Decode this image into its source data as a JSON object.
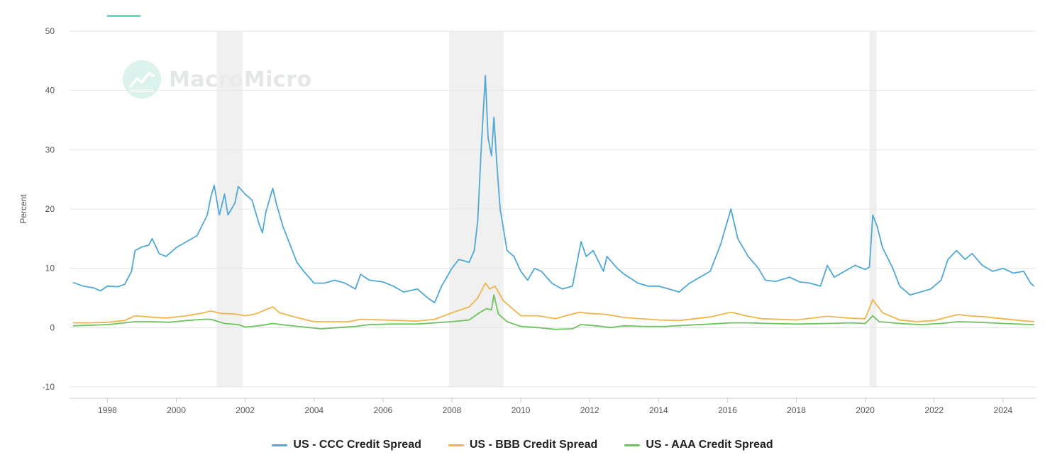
{
  "accent_color": "#6fd6c2",
  "watermark": {
    "text": "MacroMicro",
    "icon": "trend-chart-icon"
  },
  "chart_data": {
    "type": "line",
    "ylabel": "Percent",
    "ylim": [
      -10,
      50
    ],
    "y_ticks": [
      "50",
      "40",
      "30",
      "20",
      "10",
      "0",
      "-10"
    ],
    "xlim": [
      1996.9,
      2024.95
    ],
    "x_ticks": [
      "1998",
      "2000",
      "2002",
      "2004",
      "2006",
      "2008",
      "2010",
      "2012",
      "2014",
      "2016",
      "2018",
      "2020",
      "2022",
      "2024"
    ],
    "grid": "horizontal",
    "legend_position": "bottom-center",
    "recession_shading": [
      [
        2001.17,
        2001.92
      ],
      [
        2007.92,
        2009.5
      ],
      [
        2020.12,
        2020.33
      ]
    ],
    "series": [
      {
        "name": "US - CCC Credit Spread",
        "color": "#4fa8d6",
        "points": [
          [
            1997.0,
            7.6
          ],
          [
            1997.3,
            7.0
          ],
          [
            1997.6,
            6.7
          ],
          [
            1997.8,
            6.2
          ],
          [
            1998.0,
            7.0
          ],
          [
            1998.3,
            6.9
          ],
          [
            1998.5,
            7.3
          ],
          [
            1998.7,
            9.5
          ],
          [
            1998.8,
            13.0
          ],
          [
            1999.0,
            13.6
          ],
          [
            1999.2,
            13.9
          ],
          [
            1999.3,
            15.0
          ],
          [
            1999.5,
            12.5
          ],
          [
            1999.7,
            12.0
          ],
          [
            2000.0,
            13.5
          ],
          [
            2000.3,
            14.5
          ],
          [
            2000.6,
            15.5
          ],
          [
            2000.9,
            19.0
          ],
          [
            2001.0,
            22.0
          ],
          [
            2001.1,
            24.0
          ],
          [
            2001.25,
            19.0
          ],
          [
            2001.4,
            22.5
          ],
          [
            2001.5,
            19.0
          ],
          [
            2001.7,
            21.0
          ],
          [
            2001.8,
            23.8
          ],
          [
            2002.0,
            22.5
          ],
          [
            2002.2,
            21.5
          ],
          [
            2002.4,
            17.5
          ],
          [
            2002.5,
            16.0
          ],
          [
            2002.6,
            19.5
          ],
          [
            2002.8,
            23.5
          ],
          [
            2002.9,
            21.0
          ],
          [
            2003.1,
            17.0
          ],
          [
            2003.3,
            14.0
          ],
          [
            2003.5,
            11.0
          ],
          [
            2003.7,
            9.5
          ],
          [
            2004.0,
            7.5
          ],
          [
            2004.3,
            7.5
          ],
          [
            2004.6,
            8.0
          ],
          [
            2004.9,
            7.5
          ],
          [
            2005.2,
            6.5
          ],
          [
            2005.35,
            9.0
          ],
          [
            2005.6,
            8.0
          ],
          [
            2006.0,
            7.7
          ],
          [
            2006.3,
            7.0
          ],
          [
            2006.6,
            6.0
          ],
          [
            2007.0,
            6.5
          ],
          [
            2007.3,
            5.0
          ],
          [
            2007.5,
            4.2
          ],
          [
            2007.7,
            7.0
          ],
          [
            2008.0,
            10.0
          ],
          [
            2008.2,
            11.5
          ],
          [
            2008.5,
            11.0
          ],
          [
            2008.65,
            13.0
          ],
          [
            2008.75,
            18.0
          ],
          [
            2008.85,
            30.0
          ],
          [
            2008.97,
            42.5
          ],
          [
            2009.05,
            32.0
          ],
          [
            2009.15,
            29.0
          ],
          [
            2009.22,
            35.5
          ],
          [
            2009.3,
            28.0
          ],
          [
            2009.4,
            20.0
          ],
          [
            2009.6,
            13.0
          ],
          [
            2009.8,
            12.0
          ],
          [
            2010.0,
            9.5
          ],
          [
            2010.2,
            8.0
          ],
          [
            2010.4,
            10.0
          ],
          [
            2010.6,
            9.5
          ],
          [
            2010.9,
            7.5
          ],
          [
            2011.2,
            6.5
          ],
          [
            2011.5,
            7.0
          ],
          [
            2011.75,
            14.5
          ],
          [
            2011.9,
            12.0
          ],
          [
            2012.1,
            13.0
          ],
          [
            2012.4,
            9.5
          ],
          [
            2012.5,
            12.0
          ],
          [
            2012.8,
            10.0
          ],
          [
            2013.0,
            9.0
          ],
          [
            2013.4,
            7.5
          ],
          [
            2013.7,
            7.0
          ],
          [
            2014.0,
            7.0
          ],
          [
            2014.3,
            6.5
          ],
          [
            2014.6,
            6.0
          ],
          [
            2014.9,
            7.5
          ],
          [
            2015.2,
            8.5
          ],
          [
            2015.5,
            9.5
          ],
          [
            2015.8,
            14.0
          ],
          [
            2016.1,
            20.0
          ],
          [
            2016.3,
            15.0
          ],
          [
            2016.6,
            12.0
          ],
          [
            2016.9,
            10.0
          ],
          [
            2017.1,
            8.0
          ],
          [
            2017.4,
            7.8
          ],
          [
            2017.8,
            8.5
          ],
          [
            2018.1,
            7.7
          ],
          [
            2018.4,
            7.5
          ],
          [
            2018.7,
            7.0
          ],
          [
            2018.9,
            10.5
          ],
          [
            2019.1,
            8.5
          ],
          [
            2019.4,
            9.5
          ],
          [
            2019.7,
            10.5
          ],
          [
            2020.0,
            9.8
          ],
          [
            2020.12,
            10.2
          ],
          [
            2020.22,
            19.0
          ],
          [
            2020.35,
            17.0
          ],
          [
            2020.5,
            13.5
          ],
          [
            2020.8,
            10.0
          ],
          [
            2021.0,
            7.0
          ],
          [
            2021.3,
            5.5
          ],
          [
            2021.6,
            6.0
          ],
          [
            2021.9,
            6.5
          ],
          [
            2022.2,
            8.0
          ],
          [
            2022.4,
            11.5
          ],
          [
            2022.65,
            13.0
          ],
          [
            2022.9,
            11.5
          ],
          [
            2023.1,
            12.5
          ],
          [
            2023.4,
            10.5
          ],
          [
            2023.7,
            9.5
          ],
          [
            2024.0,
            10.0
          ],
          [
            2024.3,
            9.2
          ],
          [
            2024.6,
            9.5
          ],
          [
            2024.8,
            7.5
          ],
          [
            2024.9,
            7.0
          ]
        ]
      },
      {
        "name": "US - BBB Credit Spread",
        "color": "#f0b44c",
        "points": [
          [
            1997.0,
            0.8
          ],
          [
            1997.5,
            0.8
          ],
          [
            1998.0,
            0.9
          ],
          [
            1998.5,
            1.2
          ],
          [
            1998.8,
            2.0
          ],
          [
            1999.2,
            1.8
          ],
          [
            1999.7,
            1.6
          ],
          [
            2000.3,
            2.0
          ],
          [
            2000.8,
            2.5
          ],
          [
            2001.0,
            2.8
          ],
          [
            2001.3,
            2.4
          ],
          [
            2001.7,
            2.3
          ],
          [
            2002.0,
            2.0
          ],
          [
            2002.3,
            2.3
          ],
          [
            2002.8,
            3.5
          ],
          [
            2003.0,
            2.5
          ],
          [
            2003.5,
            1.7
          ],
          [
            2004.0,
            1.0
          ],
          [
            2004.5,
            1.0
          ],
          [
            2005.0,
            1.0
          ],
          [
            2005.35,
            1.4
          ],
          [
            2006.0,
            1.3
          ],
          [
            2006.5,
            1.2
          ],
          [
            2007.0,
            1.1
          ],
          [
            2007.5,
            1.4
          ],
          [
            2008.0,
            2.5
          ],
          [
            2008.5,
            3.5
          ],
          [
            2008.75,
            5.0
          ],
          [
            2008.97,
            7.5
          ],
          [
            2009.1,
            6.5
          ],
          [
            2009.25,
            7.0
          ],
          [
            2009.5,
            4.5
          ],
          [
            2010.0,
            2.0
          ],
          [
            2010.5,
            2.0
          ],
          [
            2011.0,
            1.5
          ],
          [
            2011.7,
            2.6
          ],
          [
            2012.0,
            2.4
          ],
          [
            2012.5,
            2.2
          ],
          [
            2013.0,
            1.7
          ],
          [
            2014.0,
            1.3
          ],
          [
            2014.6,
            1.2
          ],
          [
            2015.5,
            1.8
          ],
          [
            2016.1,
            2.6
          ],
          [
            2016.6,
            1.9
          ],
          [
            2017.0,
            1.5
          ],
          [
            2018.0,
            1.3
          ],
          [
            2018.9,
            1.9
          ],
          [
            2019.5,
            1.6
          ],
          [
            2020.0,
            1.5
          ],
          [
            2020.22,
            4.7
          ],
          [
            2020.5,
            2.5
          ],
          [
            2021.0,
            1.3
          ],
          [
            2021.5,
            1.0
          ],
          [
            2022.0,
            1.2
          ],
          [
            2022.7,
            2.2
          ],
          [
            2023.0,
            2.0
          ],
          [
            2023.5,
            1.8
          ],
          [
            2024.0,
            1.5
          ],
          [
            2024.5,
            1.2
          ],
          [
            2024.9,
            1.0
          ]
        ]
      },
      {
        "name": "US - AAA Credit Spread",
        "color": "#6cc35d",
        "points": [
          [
            1997.0,
            0.3
          ],
          [
            1997.5,
            0.4
          ],
          [
            1998.0,
            0.5
          ],
          [
            1998.5,
            0.8
          ],
          [
            1998.8,
            1.0
          ],
          [
            1999.3,
            1.0
          ],
          [
            1999.8,
            0.9
          ],
          [
            2000.3,
            1.2
          ],
          [
            2000.8,
            1.4
          ],
          [
            2001.0,
            1.4
          ],
          [
            2001.4,
            0.7
          ],
          [
            2001.8,
            0.5
          ],
          [
            2002.0,
            0.1
          ],
          [
            2002.4,
            0.3
          ],
          [
            2002.8,
            0.7
          ],
          [
            2003.2,
            0.4
          ],
          [
            2003.7,
            0.1
          ],
          [
            2004.2,
            -0.2
          ],
          [
            2004.7,
            0.0
          ],
          [
            2005.2,
            0.2
          ],
          [
            2005.6,
            0.5
          ],
          [
            2006.2,
            0.6
          ],
          [
            2007.0,
            0.6
          ],
          [
            2007.5,
            0.8
          ],
          [
            2008.0,
            1.0
          ],
          [
            2008.5,
            1.3
          ],
          [
            2008.8,
            2.5
          ],
          [
            2009.0,
            3.2
          ],
          [
            2009.15,
            3.0
          ],
          [
            2009.22,
            5.5
          ],
          [
            2009.35,
            2.3
          ],
          [
            2009.6,
            1.0
          ],
          [
            2010.0,
            0.2
          ],
          [
            2010.5,
            0.0
          ],
          [
            2011.0,
            -0.3
          ],
          [
            2011.5,
            -0.2
          ],
          [
            2011.75,
            0.5
          ],
          [
            2012.2,
            0.3
          ],
          [
            2012.6,
            0.0
          ],
          [
            2013.0,
            0.3
          ],
          [
            2013.6,
            0.2
          ],
          [
            2014.2,
            0.2
          ],
          [
            2014.8,
            0.4
          ],
          [
            2015.5,
            0.6
          ],
          [
            2016.1,
            0.8
          ],
          [
            2016.6,
            0.8
          ],
          [
            2017.2,
            0.7
          ],
          [
            2018.0,
            0.6
          ],
          [
            2018.9,
            0.7
          ],
          [
            2019.6,
            0.8
          ],
          [
            2020.0,
            0.7
          ],
          [
            2020.22,
            2.0
          ],
          [
            2020.4,
            1.0
          ],
          [
            2021.0,
            0.7
          ],
          [
            2021.6,
            0.5
          ],
          [
            2022.2,
            0.7
          ],
          [
            2022.7,
            1.0
          ],
          [
            2023.3,
            0.9
          ],
          [
            2024.0,
            0.7
          ],
          [
            2024.9,
            0.5
          ]
        ]
      }
    ]
  }
}
